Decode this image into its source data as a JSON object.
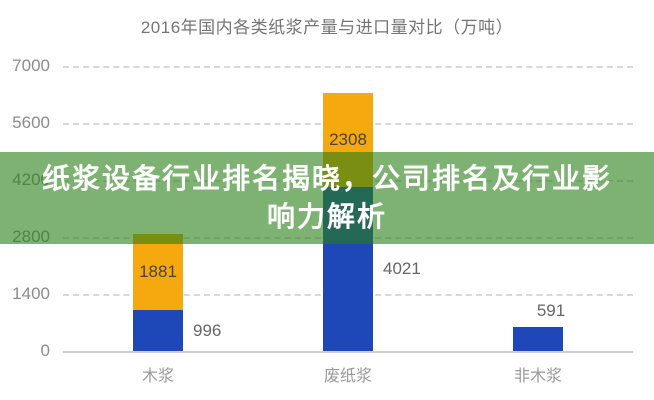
{
  "title": "2016年国内各类纸浆产量与进口量对比（万吨）",
  "overlay": {
    "full_text": "纸浆设备行业排名揭晓，公司排名及行业影响力解析",
    "lines": [
      "纸浆设备行业排名揭晓，公司排名及行业影",
      "响力解析"
    ],
    "background_color": "#287E14",
    "background_opacity": 0.6,
    "text_color": "#ffffff"
  },
  "chart_data": {
    "type": "bar",
    "stacked": true,
    "title": "2016年国内各类纸浆产量与进口量对比（万吨）",
    "categories": [
      "木浆",
      "废纸浆",
      "非木浆"
    ],
    "series": [
      {
        "name": "产量",
        "color": "#1E48B8",
        "values": [
          996,
          4021,
          591
        ],
        "label_color": "#666666",
        "label_placement": [
          "right",
          "right",
          "top"
        ]
      },
      {
        "name": "进口量",
        "color": "#F5A90F",
        "values": [
          1881,
          2308,
          null
        ],
        "label_color": "#494536",
        "label_placement": [
          "inside",
          "inside",
          "none"
        ]
      }
    ],
    "yticks": [
      0,
      1400,
      2800,
      4200,
      5600,
      7000
    ],
    "ylim": [
      0,
      7000
    ],
    "grid": "horizontal-dashed",
    "legend": "none",
    "styles": {
      "title_color": "#757575",
      "y_tick_color": "#8c8c8c",
      "x_tick_color": "#999999",
      "gridline_color": "#d8d8d8",
      "axis_line_color": "#cfcfcf",
      "background": "#ffffff"
    }
  }
}
